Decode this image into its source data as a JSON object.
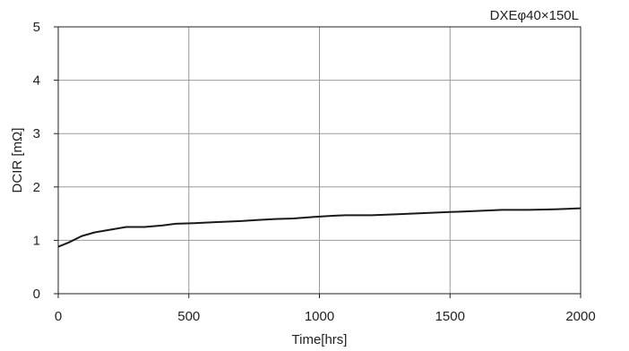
{
  "chart_data": {
    "type": "line",
    "title": "DXEφ40×150L",
    "xlabel": "Time[hrs]",
    "ylabel": "DCIR [mΩ]",
    "xlim": [
      0,
      2000
    ],
    "ylim": [
      0,
      5
    ],
    "xticks": [
      0,
      500,
      1000,
      1500,
      2000
    ],
    "yticks": [
      0,
      1,
      2,
      3,
      4,
      5
    ],
    "grid": true,
    "series": [
      {
        "color": "#1a1a1a",
        "x": [
          0,
          40,
          90,
          140,
          200,
          260,
          330,
          400,
          450,
          520,
          600,
          650,
          700,
          760,
          830,
          900,
          980,
          1050,
          1100,
          1200,
          1300,
          1400,
          1500,
          1600,
          1700,
          1800,
          1900,
          2000
        ],
        "y": [
          0.88,
          0.96,
          1.08,
          1.15,
          1.2,
          1.25,
          1.25,
          1.28,
          1.31,
          1.32,
          1.34,
          1.35,
          1.36,
          1.38,
          1.4,
          1.41,
          1.44,
          1.46,
          1.47,
          1.47,
          1.49,
          1.51,
          1.53,
          1.55,
          1.57,
          1.57,
          1.58,
          1.6
        ]
      }
    ]
  }
}
